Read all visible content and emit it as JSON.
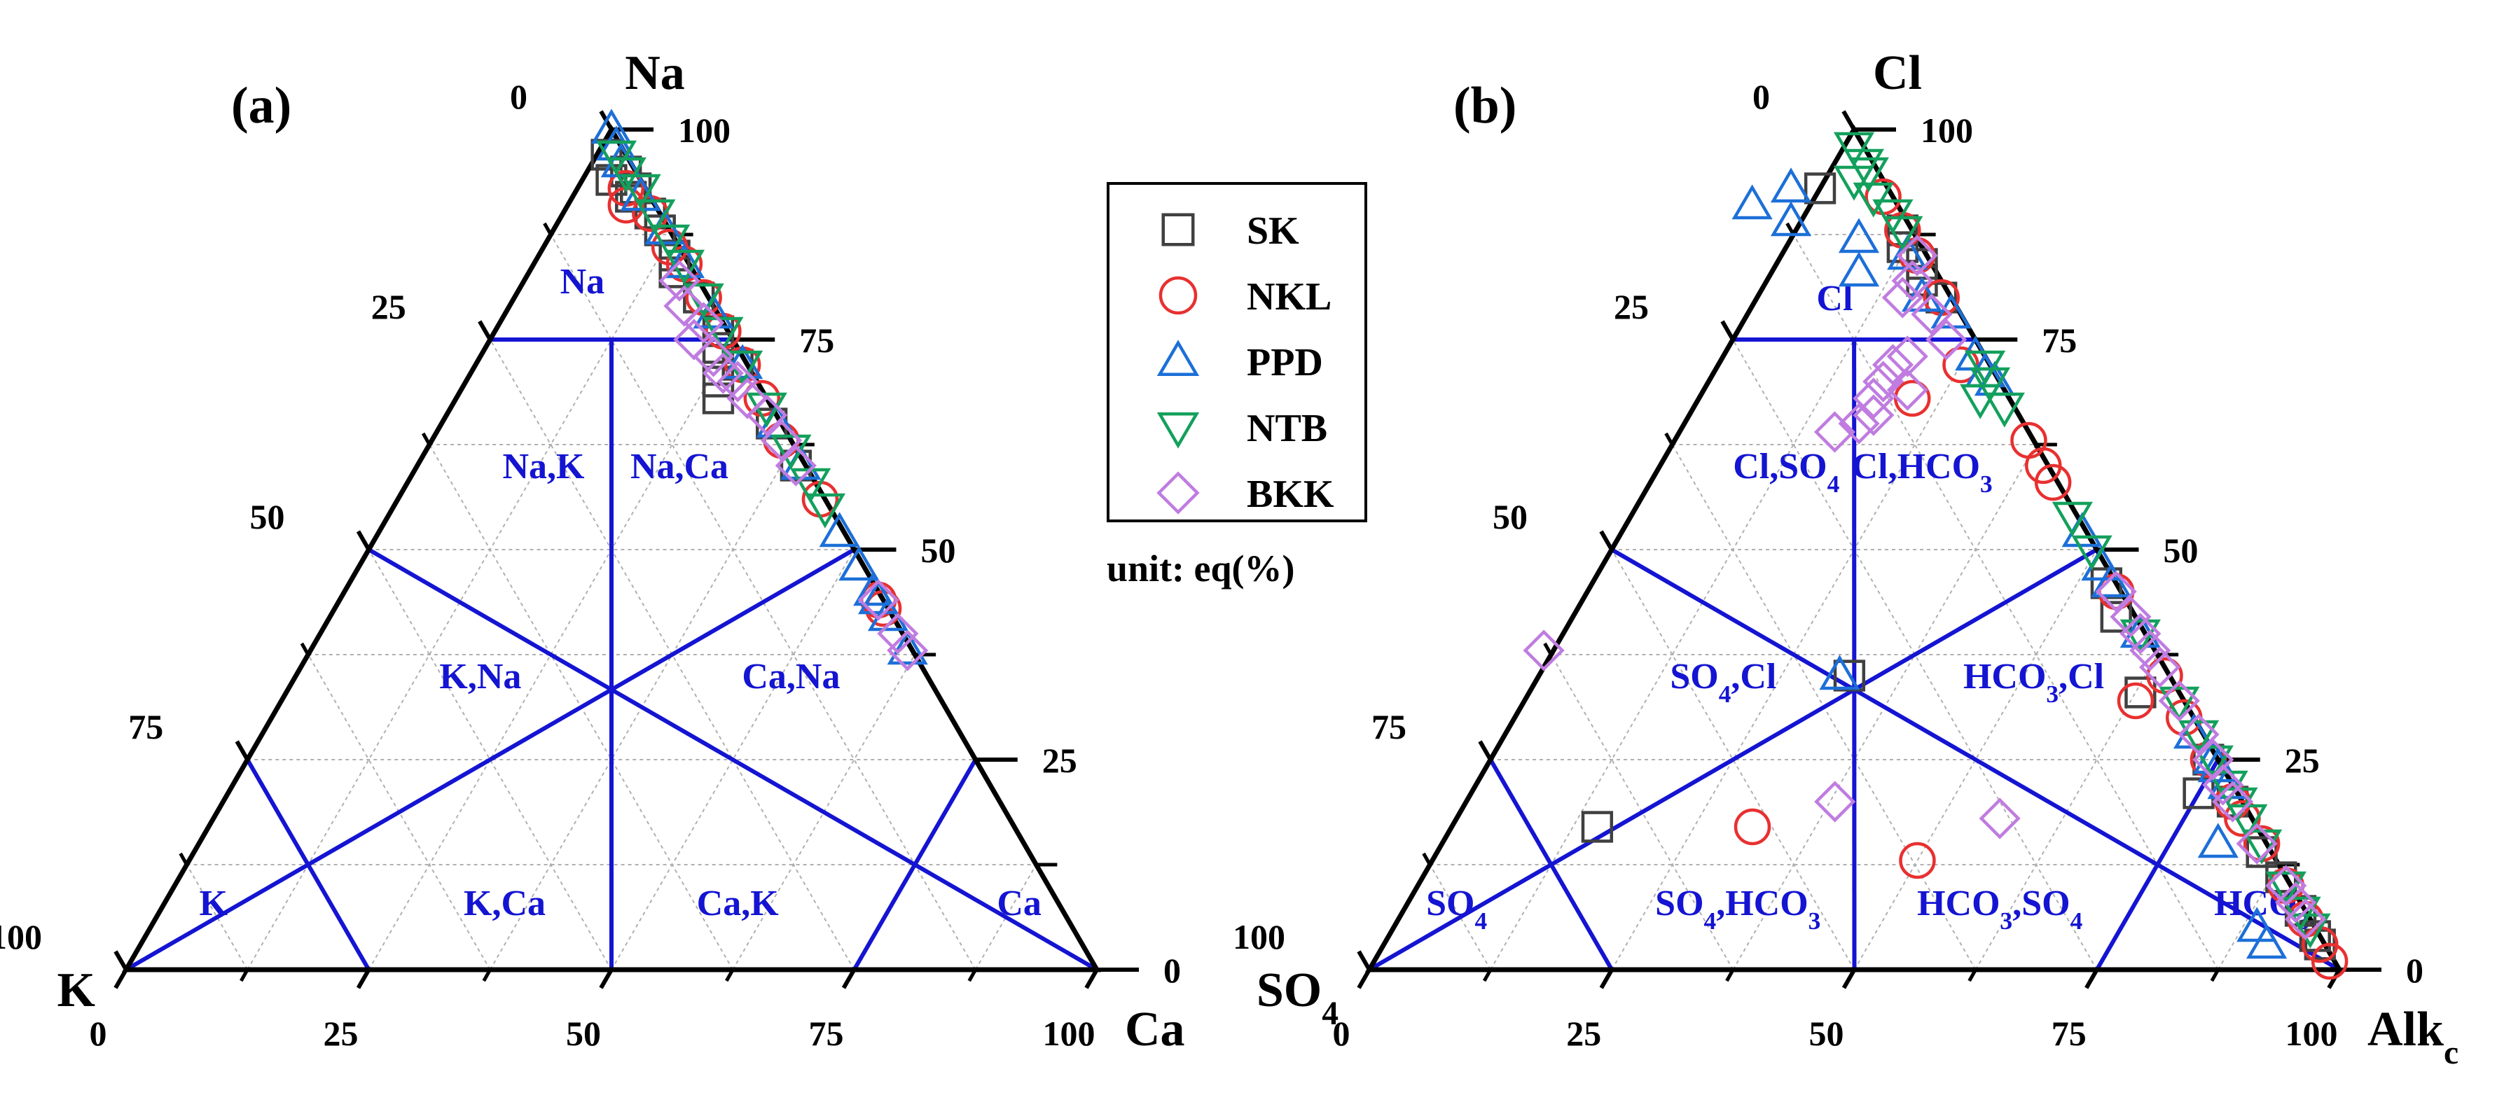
{
  "chart_data": [
    {
      "type": "ternary-scatter",
      "panel_label": "(a)",
      "apex_labels": {
        "top": "Na",
        "left": "K",
        "right": "Ca"
      },
      "left_axis_ticks": [
        "0",
        "25",
        "50",
        "75",
        "100"
      ],
      "right_axis_ticks": [
        "100",
        "75",
        "50",
        "25",
        "0"
      ],
      "bottom_axis_ticks": [
        "0",
        "25",
        "50",
        "75",
        "100"
      ],
      "regions": [
        {
          "label": "Na",
          "na": 82,
          "k": 12
        },
        {
          "label": "Na,K",
          "na": 60,
          "k": 27
        },
        {
          "label": "Na,Ca",
          "na": 60,
          "k": 13
        },
        {
          "label": "K,Na",
          "na": 35,
          "k": 46
        },
        {
          "label": "Ca,Na",
          "na": 35,
          "k": 14
        },
        {
          "label": "K",
          "na": 8,
          "k": 87
        },
        {
          "label": "K,Ca",
          "na": 8,
          "k": 57
        },
        {
          "label": "Ca,K",
          "na": 8,
          "k": 33
        },
        {
          "label": "Ca",
          "na": 8,
          "k": 4
        }
      ],
      "series": [
        {
          "name": "SK",
          "points": [
            [
              97,
              2
            ],
            [
              95,
              1
            ],
            [
              94,
              3
            ],
            [
              93,
              1
            ],
            [
              92,
              2
            ],
            [
              90,
              1
            ],
            [
              88,
              1
            ],
            [
              85,
              1
            ],
            [
              83,
              2
            ],
            [
              80,
              1
            ],
            [
              76,
              1
            ],
            [
              74,
              2
            ],
            [
              72,
              1
            ],
            [
              70,
              4
            ],
            [
              68,
              5
            ],
            [
              65,
              1
            ],
            [
              60,
              1
            ]
          ]
        },
        {
          "name": "NKL",
          "points": [
            [
              93,
              2
            ],
            [
              91,
              3
            ],
            [
              90,
              1
            ],
            [
              86,
              1
            ],
            [
              84,
              0.5
            ],
            [
              80,
              0.5
            ],
            [
              76,
              0.5
            ],
            [
              72,
              0.5
            ],
            [
              68,
              0.5
            ],
            [
              63,
              1
            ],
            [
              56,
              0.5
            ],
            [
              44,
              0.5
            ],
            [
              43,
              0.5
            ]
          ]
        },
        {
          "name": "PPD",
          "points": [
            [
              100,
              0
            ],
            [
              98,
              0.5
            ],
            [
              96,
              1
            ],
            [
              92,
              1
            ],
            [
              88,
              0.5
            ],
            [
              84,
              0.5
            ],
            [
              78,
              0.5
            ],
            [
              72,
              0.5
            ],
            [
              65,
              0.5
            ],
            [
              60,
              0.5
            ],
            [
              52,
              0.5
            ],
            [
              48,
              0.5
            ],
            [
              45,
              0.5
            ],
            [
              44,
              0.5
            ],
            [
              42,
              0.5
            ],
            [
              38,
              0.5
            ]
          ]
        },
        {
          "name": "NTB",
          "points": [
            [
              97,
              1
            ],
            [
              95,
              1
            ],
            [
              93,
              0.5
            ],
            [
              90,
              0.5
            ],
            [
              87,
              0.5
            ],
            [
              84,
              0.5
            ],
            [
              80,
              0.5
            ],
            [
              76,
              0.5
            ],
            [
              72,
              0.5
            ],
            [
              67,
              0.5
            ],
            [
              62,
              0.5
            ],
            [
              58,
              0.5
            ],
            [
              55,
              0.5
            ]
          ]
        },
        {
          "name": "BKK",
          "points": [
            [
              82,
              2
            ],
            [
              79,
              3
            ],
            [
              77,
              2
            ],
            [
              75,
              4
            ],
            [
              73,
              3
            ],
            [
              71,
              3
            ],
            [
              70,
              2
            ],
            [
              68,
              2
            ],
            [
              66,
              1
            ],
            [
              63,
              1
            ],
            [
              60,
              1
            ],
            [
              44,
              0.5
            ],
            [
              40,
              0.5
            ],
            [
              38,
              0.5
            ]
          ]
        }
      ]
    },
    {
      "type": "ternary-scatter",
      "panel_label": "(b)",
      "apex_labels": {
        "top": "Cl",
        "left": "SO",
        "left_sub": "4",
        "right": "Alk",
        "right_sub": "c"
      },
      "left_axis_ticks": [
        "0",
        "25",
        "50",
        "75",
        "100"
      ],
      "right_axis_ticks": [
        "100",
        "75",
        "50",
        "25",
        "0"
      ],
      "bottom_axis_ticks": [
        "0",
        "25",
        "50",
        "75",
        "100"
      ],
      "regions": [
        {
          "label": "Cl",
          "na": 80,
          "k": 12
        },
        {
          "label": "Cl,SO",
          "sub": "4",
          "na": 60,
          "k": 27
        },
        {
          "label": "Cl,HCO",
          "sub": "3",
          "na": 60,
          "k": 13
        },
        {
          "label": "SO",
          "sub": "4",
          "suffix": ",Cl",
          "na": 35,
          "k": 46
        },
        {
          "label": "HCO",
          "sub": "3",
          "suffix": ",Cl",
          "na": 35,
          "k": 14
        },
        {
          "label": "SO",
          "sub": "4",
          "na": 8,
          "k": 87
        },
        {
          "label": "SO",
          "sub": "4",
          "suffix": ",HCO",
          "sub2": "3",
          "na": 8,
          "k": 58
        },
        {
          "label": "HCO",
          "sub": "3",
          "suffix": ",SO",
          "sub2": "4",
          "na": 8,
          "k": 31
        },
        {
          "label": "HCO",
          "sub": "3",
          "na": 8,
          "k": 4
        }
      ],
      "series": [
        {
          "name": "SK",
          "points": [
            [
              93,
              7
            ],
            [
              88,
              1
            ],
            [
              86,
              2
            ],
            [
              84,
              1
            ],
            [
              82,
              2
            ],
            [
              80,
              1
            ],
            [
              46,
              1
            ],
            [
              42,
              2
            ],
            [
              33,
              4
            ],
            [
              25,
              1
            ],
            [
              21,
              4
            ],
            [
              20,
              1
            ],
            [
              14,
              1
            ],
            [
              11,
              0.5
            ],
            [
              7,
              0.5
            ],
            [
              3,
              0.5
            ],
            [
              4,
              0.5
            ],
            [
              35,
              33
            ],
            [
              17,
              68
            ]
          ]
        },
        {
          "name": "NKL",
          "points": [
            [
              92,
              1
            ],
            [
              88,
              1
            ],
            [
              85,
              1
            ],
            [
              80,
              1
            ],
            [
              72,
              3
            ],
            [
              68,
              10
            ],
            [
              63,
              0.5
            ],
            [
              60,
              0.5
            ],
            [
              58,
              0.5
            ],
            [
              45,
              0.5
            ],
            [
              35,
              0.5
            ],
            [
              32,
              5
            ],
            [
              30,
              1
            ],
            [
              25,
              1
            ],
            [
              20,
              1
            ],
            [
              18,
              1
            ],
            [
              15,
              0.5
            ],
            [
              10,
              0.5
            ],
            [
              6,
              0.5
            ],
            [
              3,
              0.5
            ],
            [
              1,
              0.5
            ],
            [
              17,
              52
            ],
            [
              13,
              37
            ]
          ]
        },
        {
          "name": "PPD",
          "points": [
            [
              93,
              10
            ],
            [
              91,
              15
            ],
            [
              89,
              12
            ],
            [
              87,
              6
            ],
            [
              85,
              2
            ],
            [
              83,
              8
            ],
            [
              80,
              3
            ],
            [
              78,
              1
            ],
            [
              73,
              1
            ],
            [
              71,
              1
            ],
            [
              70,
              0.5
            ],
            [
              52,
              0.5
            ],
            [
              48,
              0.5
            ],
            [
              46,
              0.5
            ],
            [
              40,
              0.5
            ],
            [
              28,
              1
            ],
            [
              25,
              0.5
            ],
            [
              24,
              0.5
            ],
            [
              22,
              0.5
            ],
            [
              15,
              5
            ],
            [
              5,
              6
            ],
            [
              3,
              6
            ],
            [
              35,
              34
            ]
          ]
        },
        {
          "name": "NTB",
          "points": [
            [
              98,
              1
            ],
            [
              96,
              1
            ],
            [
              95,
              1
            ],
            [
              94,
              3
            ],
            [
              92,
              2
            ],
            [
              90,
              1
            ],
            [
              88,
              1
            ],
            [
              72,
              0.5
            ],
            [
              70,
              1
            ],
            [
              68,
              3
            ],
            [
              67,
              1
            ],
            [
              54,
              0.5
            ],
            [
              50,
              0.5
            ],
            [
              40,
              0.5
            ],
            [
              32,
              0.5
            ],
            [
              28,
              0.5
            ],
            [
              25,
              0.5
            ],
            [
              22,
              0.5
            ],
            [
              20,
              0.5
            ],
            [
              18,
              0.5
            ],
            [
              15,
              0.5
            ],
            [
              10,
              0.5
            ],
            [
              7,
              0.5
            ],
            [
              5,
              0.5
            ]
          ]
        },
        {
          "name": "BKK",
          "points": [
            [
              85,
              1
            ],
            [
              82,
              3
            ],
            [
              80,
              5
            ],
            [
              78,
              3
            ],
            [
              75,
              3
            ],
            [
              73,
              8
            ],
            [
              72,
              10
            ],
            [
              70,
              12
            ],
            [
              69,
              10
            ],
            [
              68,
              14
            ],
            [
              66,
              15
            ],
            [
              65,
              17
            ],
            [
              64,
              20
            ],
            [
              45,
              0.5
            ],
            [
              42,
              0.5
            ],
            [
              40,
              0.5
            ],
            [
              38,
              0.5
            ],
            [
              36,
              0.5
            ],
            [
              32,
              0.5
            ],
            [
              28,
              0.5
            ],
            [
              25,
              0.5
            ],
            [
              22,
              1
            ],
            [
              20,
              1
            ],
            [
              15,
              1
            ],
            [
              10,
              0.5
            ],
            [
              8,
              0.5
            ],
            [
              6,
              0.5
            ],
            [
              38,
              63
            ],
            [
              20,
              42
            ],
            [
              18,
              26
            ]
          ]
        }
      ]
    }
  ],
  "legend": {
    "items": [
      {
        "name": "SK",
        "marker": "square",
        "color": "#404040"
      },
      {
        "name": "NKL",
        "marker": "circle",
        "color": "#e83030"
      },
      {
        "name": "PPD",
        "marker": "triangle-up",
        "color": "#1c6fd8"
      },
      {
        "name": "NTB",
        "marker": "triangle-down",
        "color": "#13a05c"
      },
      {
        "name": "BKK",
        "marker": "diamond",
        "color": "#c07ce0"
      }
    ],
    "unit_text": "unit: eq(%)"
  },
  "colors": {
    "axis": "#000000",
    "grid": "#b0b0b0",
    "boundary": "#1414d2"
  }
}
